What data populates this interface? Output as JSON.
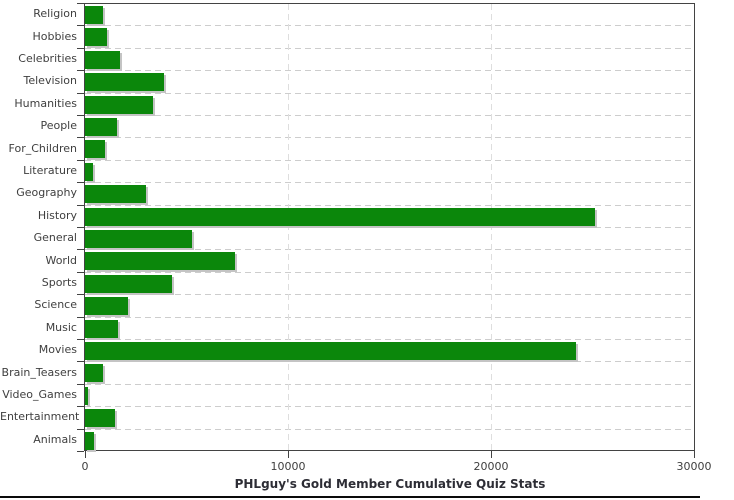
{
  "chart_data": {
    "type": "bar",
    "orientation": "horizontal",
    "title": "PHLguy's Gold Member Cumulative Quiz Stats",
    "categories": [
      "Religion",
      "Hobbies",
      "Celebrities",
      "Television",
      "Humanities",
      "People",
      "For_Children",
      "Literature",
      "Geography",
      "History",
      "General",
      "World",
      "Sports",
      "Science",
      "Music",
      "Movies",
      "Brain_Teasers",
      "Video_Games",
      "Entertainment",
      "Animals"
    ],
    "values": [
      900,
      1100,
      1700,
      3900,
      3350,
      1600,
      1000,
      400,
      3000,
      25100,
      5250,
      7400,
      4300,
      2100,
      1650,
      24200,
      900,
      160,
      1500,
      430
    ],
    "xlabel": "",
    "ylabel": "",
    "xlim": [
      0,
      30000
    ],
    "x_ticks": [
      0,
      10000,
      20000,
      30000
    ],
    "x_tick_labels": [
      "0",
      "10000",
      "20000",
      "30000"
    ],
    "grid": "dashed category separators and dashed vertical lines at x ticks",
    "legend_position": "none"
  },
  "colors": {
    "bar_fill": "#0b870b",
    "bar_shadow": "#c4c4c4",
    "grid_horizontal": "#cdcdcd",
    "grid_vertical": "#dedede",
    "axis_line": "#434343",
    "tick_label": "#3f3f3f",
    "title_text": "#2d2d35",
    "background": "#ffffff",
    "bottom_border": "#0a0a0a"
  }
}
